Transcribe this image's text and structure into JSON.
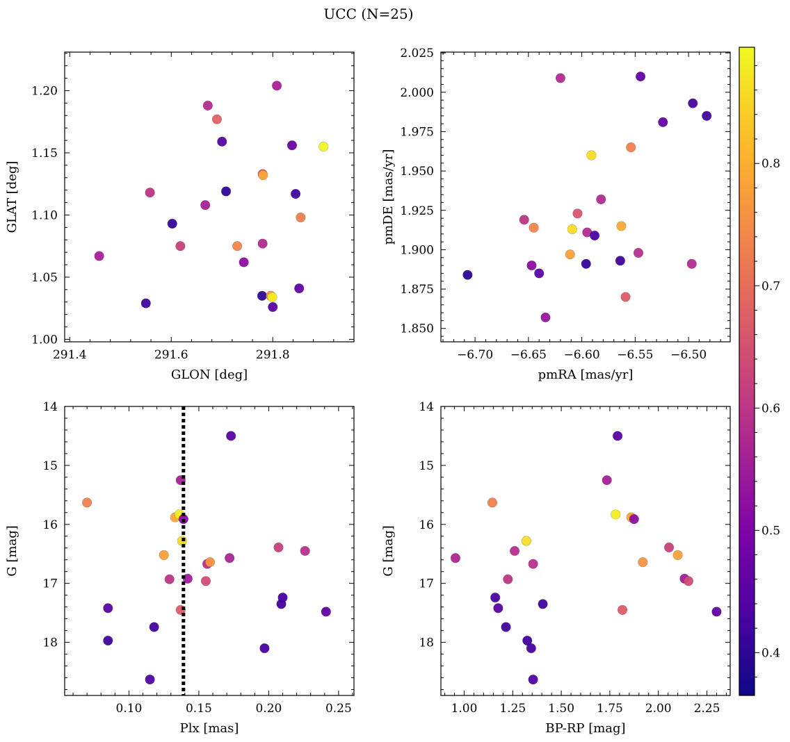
{
  "figure": {
    "title": "UCC (N=25)"
  },
  "colorbar": {
    "cmap": "plasma",
    "range": [
      0.365,
      0.895
    ],
    "ticks": [
      "0.4",
      "0.5",
      "0.6",
      "0.7",
      "0.8"
    ],
    "tick_values": [
      0.4,
      0.5,
      0.6,
      0.7,
      0.8
    ]
  },
  "chart_data": [
    {
      "type": "scatter",
      "xlabel": "GLON [deg]",
      "ylabel": "GLAT [deg]",
      "xlim": [
        291.39,
        291.96
      ],
      "ylim": [
        0.998,
        1.231
      ],
      "xticks": [
        291.4,
        291.6,
        291.8
      ],
      "xtick_labels": [
        "291.4",
        "291.6",
        "291.8"
      ],
      "yticks": [
        1.0,
        1.05,
        1.1,
        1.15,
        1.2
      ],
      "ytick_labels": [
        "1.00",
        "1.05",
        "1.10",
        "1.15",
        "1.20"
      ],
      "points": [
        {
          "x": 291.458,
          "y": 1.067,
          "c": 0.56
        },
        {
          "x": 291.55,
          "y": 1.029,
          "c": 0.42
        },
        {
          "x": 291.558,
          "y": 1.118,
          "c": 0.6
        },
        {
          "x": 291.602,
          "y": 1.093,
          "c": 0.41
        },
        {
          "x": 291.618,
          "y": 1.075,
          "c": 0.62
        },
        {
          "x": 291.667,
          "y": 1.108,
          "c": 0.56
        },
        {
          "x": 291.672,
          "y": 1.188,
          "c": 0.58
        },
        {
          "x": 291.69,
          "y": 1.177,
          "c": 0.68
        },
        {
          "x": 291.7,
          "y": 1.159,
          "c": 0.45
        },
        {
          "x": 291.708,
          "y": 1.119,
          "c": 0.4
        },
        {
          "x": 291.73,
          "y": 1.075,
          "c": 0.74
        },
        {
          "x": 291.743,
          "y": 1.062,
          "c": 0.52
        },
        {
          "x": 291.779,
          "y": 1.035,
          "c": 0.4
        },
        {
          "x": 291.78,
          "y": 1.077,
          "c": 0.58
        },
        {
          "x": 291.78,
          "y": 1.133,
          "c": 0.67
        },
        {
          "x": 291.781,
          "y": 1.132,
          "c": 0.79
        },
        {
          "x": 291.796,
          "y": 1.035,
          "c": 0.76
        },
        {
          "x": 291.799,
          "y": 1.034,
          "c": 0.88
        },
        {
          "x": 291.8,
          "y": 1.026,
          "c": 0.45
        },
        {
          "x": 291.808,
          "y": 1.204,
          "c": 0.56
        },
        {
          "x": 291.838,
          "y": 1.156,
          "c": 0.47
        },
        {
          "x": 291.845,
          "y": 1.117,
          "c": 0.42
        },
        {
          "x": 291.852,
          "y": 1.041,
          "c": 0.46
        },
        {
          "x": 291.855,
          "y": 1.098,
          "c": 0.73
        },
        {
          "x": 291.9,
          "y": 1.155,
          "c": 0.89
        }
      ]
    },
    {
      "type": "scatter",
      "xlabel": "pmRA [mas/yr]",
      "ylabel": "pmDE [mas/yr]",
      "xlim": [
        -6.732,
        -6.461
      ],
      "ylim": [
        1.8415,
        2.0255
      ],
      "xticks": [
        -6.7,
        -6.65,
        -6.6,
        -6.55,
        -6.5
      ],
      "xtick_labels": [
        "−6.70",
        "−6.65",
        "−6.60",
        "−6.55",
        "−6.50"
      ],
      "yticks": [
        1.85,
        1.875,
        1.9,
        1.925,
        1.95,
        1.975,
        2.0,
        2.025
      ],
      "ytick_labels": [
        "1.850",
        "1.875",
        "1.900",
        "1.925",
        "1.950",
        "1.975",
        "2.000",
        "2.025"
      ],
      "points": [
        {
          "x": -6.707,
          "y": 1.884,
          "c": 0.4
        },
        {
          "x": -6.654,
          "y": 1.919,
          "c": 0.6
        },
        {
          "x": -6.647,
          "y": 1.89,
          "c": 0.52
        },
        {
          "x": -6.645,
          "y": 1.914,
          "c": 0.74
        },
        {
          "x": -6.64,
          "y": 1.885,
          "c": 0.45
        },
        {
          "x": -6.634,
          "y": 1.857,
          "c": 0.54
        },
        {
          "x": -6.62,
          "y": 2.009,
          "c": 0.58
        },
        {
          "x": -6.611,
          "y": 1.897,
          "c": 0.78
        },
        {
          "x": -6.609,
          "y": 1.913,
          "c": 0.86
        },
        {
          "x": -6.604,
          "y": 1.923,
          "c": 0.66
        },
        {
          "x": -6.596,
          "y": 1.891,
          "c": 0.41
        },
        {
          "x": -6.595,
          "y": 1.911,
          "c": 0.58
        },
        {
          "x": -6.591,
          "y": 1.96,
          "c": 0.86
        },
        {
          "x": -6.588,
          "y": 1.909,
          "c": 0.43
        },
        {
          "x": -6.582,
          "y": 1.932,
          "c": 0.58
        },
        {
          "x": -6.563,
          "y": 1.915,
          "c": 0.79
        },
        {
          "x": -6.564,
          "y": 1.893,
          "c": 0.42
        },
        {
          "x": -6.559,
          "y": 1.87,
          "c": 0.67
        },
        {
          "x": -6.554,
          "y": 1.965,
          "c": 0.73
        },
        {
          "x": -6.547,
          "y": 1.898,
          "c": 0.59
        },
        {
          "x": -6.545,
          "y": 2.01,
          "c": 0.46
        },
        {
          "x": -6.524,
          "y": 1.981,
          "c": 0.47
        },
        {
          "x": -6.497,
          "y": 1.891,
          "c": 0.58
        },
        {
          "x": -6.496,
          "y": 1.993,
          "c": 0.43
        },
        {
          "x": -6.483,
          "y": 1.985,
          "c": 0.42
        }
      ]
    },
    {
      "type": "scatter",
      "xlabel": "Plx [mas]",
      "ylabel": "G [mag]",
      "xlim": [
        0.054,
        0.261
      ],
      "ylim": [
        18.9,
        14.0
      ],
      "xticks": [
        0.1,
        0.15,
        0.2,
        0.25
      ],
      "xtick_labels": [
        "0.10",
        "0.15",
        "0.20",
        "0.25"
      ],
      "yticks": [
        14,
        15,
        16,
        17,
        18
      ],
      "ytick_labels": [
        "14",
        "15",
        "16",
        "17",
        "18"
      ],
      "vline": 0.139,
      "points": [
        {
          "x": 0.07,
          "y": 15.63,
          "c": 0.73
        },
        {
          "x": 0.085,
          "y": 17.42,
          "c": 0.45
        },
        {
          "x": 0.085,
          "y": 17.97,
          "c": 0.42
        },
        {
          "x": 0.115,
          "y": 18.63,
          "c": 0.44
        },
        {
          "x": 0.118,
          "y": 17.74,
          "c": 0.42
        },
        {
          "x": 0.125,
          "y": 16.52,
          "c": 0.78
        },
        {
          "x": 0.129,
          "y": 16.93,
          "c": 0.6
        },
        {
          "x": 0.133,
          "y": 15.88,
          "c": 0.79
        },
        {
          "x": 0.136,
          "y": 15.83,
          "c": 0.88
        },
        {
          "x": 0.137,
          "y": 17.45,
          "c": 0.67
        },
        {
          "x": 0.137,
          "y": 15.25,
          "c": 0.56
        },
        {
          "x": 0.138,
          "y": 16.28,
          "c": 0.86
        },
        {
          "x": 0.139,
          "y": 15.91,
          "c": 0.52
        },
        {
          "x": 0.142,
          "y": 16.92,
          "c": 0.55
        },
        {
          "x": 0.155,
          "y": 16.96,
          "c": 0.64
        },
        {
          "x": 0.156,
          "y": 16.67,
          "c": 0.59
        },
        {
          "x": 0.158,
          "y": 16.64,
          "c": 0.76
        },
        {
          "x": 0.172,
          "y": 16.57,
          "c": 0.57
        },
        {
          "x": 0.173,
          "y": 14.5,
          "c": 0.45
        },
        {
          "x": 0.197,
          "y": 18.1,
          "c": 0.43
        },
        {
          "x": 0.207,
          "y": 16.39,
          "c": 0.62
        },
        {
          "x": 0.209,
          "y": 17.35,
          "c": 0.42
        },
        {
          "x": 0.21,
          "y": 17.24,
          "c": 0.43
        },
        {
          "x": 0.226,
          "y": 16.45,
          "c": 0.59
        },
        {
          "x": 0.241,
          "y": 17.48,
          "c": 0.46
        }
      ]
    },
    {
      "type": "scatter",
      "xlabel": "BP-RP [mag]",
      "ylabel": "G [mag]",
      "xlim": [
        0.88,
        2.37
      ],
      "ylim": [
        18.9,
        14.0
      ],
      "xticks": [
        1.0,
        1.25,
        1.5,
        1.75,
        2.0,
        2.25
      ],
      "xtick_labels": [
        "1.00",
        "1.25",
        "1.50",
        "1.75",
        "2.00",
        "2.25"
      ],
      "yticks": [
        14,
        15,
        16,
        17,
        18
      ],
      "ytick_labels": [
        "14",
        "15",
        "16",
        "17",
        "18"
      ],
      "points": [
        {
          "x": 0.955,
          "y": 16.57,
          "c": 0.57
        },
        {
          "x": 1.145,
          "y": 15.63,
          "c": 0.73
        },
        {
          "x": 1.16,
          "y": 17.24,
          "c": 0.43
        },
        {
          "x": 1.175,
          "y": 17.42,
          "c": 0.45
        },
        {
          "x": 1.215,
          "y": 17.74,
          "c": 0.42
        },
        {
          "x": 1.225,
          "y": 16.93,
          "c": 0.6
        },
        {
          "x": 1.26,
          "y": 16.45,
          "c": 0.59
        },
        {
          "x": 1.32,
          "y": 16.28,
          "c": 0.86
        },
        {
          "x": 1.325,
          "y": 17.97,
          "c": 0.42
        },
        {
          "x": 1.345,
          "y": 18.1,
          "c": 0.43
        },
        {
          "x": 1.355,
          "y": 16.67,
          "c": 0.59
        },
        {
          "x": 1.355,
          "y": 18.63,
          "c": 0.44
        },
        {
          "x": 1.405,
          "y": 17.35,
          "c": 0.42
        },
        {
          "x": 1.735,
          "y": 15.25,
          "c": 0.56
        },
        {
          "x": 1.78,
          "y": 15.83,
          "c": 0.88
        },
        {
          "x": 1.79,
          "y": 14.5,
          "c": 0.45
        },
        {
          "x": 1.815,
          "y": 17.45,
          "c": 0.67
        },
        {
          "x": 1.86,
          "y": 15.88,
          "c": 0.79
        },
        {
          "x": 1.875,
          "y": 15.91,
          "c": 0.52
        },
        {
          "x": 1.92,
          "y": 16.64,
          "c": 0.76
        },
        {
          "x": 2.055,
          "y": 16.39,
          "c": 0.62
        },
        {
          "x": 2.1,
          "y": 16.52,
          "c": 0.78
        },
        {
          "x": 2.135,
          "y": 16.92,
          "c": 0.55
        },
        {
          "x": 2.155,
          "y": 16.96,
          "c": 0.64
        },
        {
          "x": 2.3,
          "y": 17.48,
          "c": 0.46
        }
      ]
    }
  ]
}
